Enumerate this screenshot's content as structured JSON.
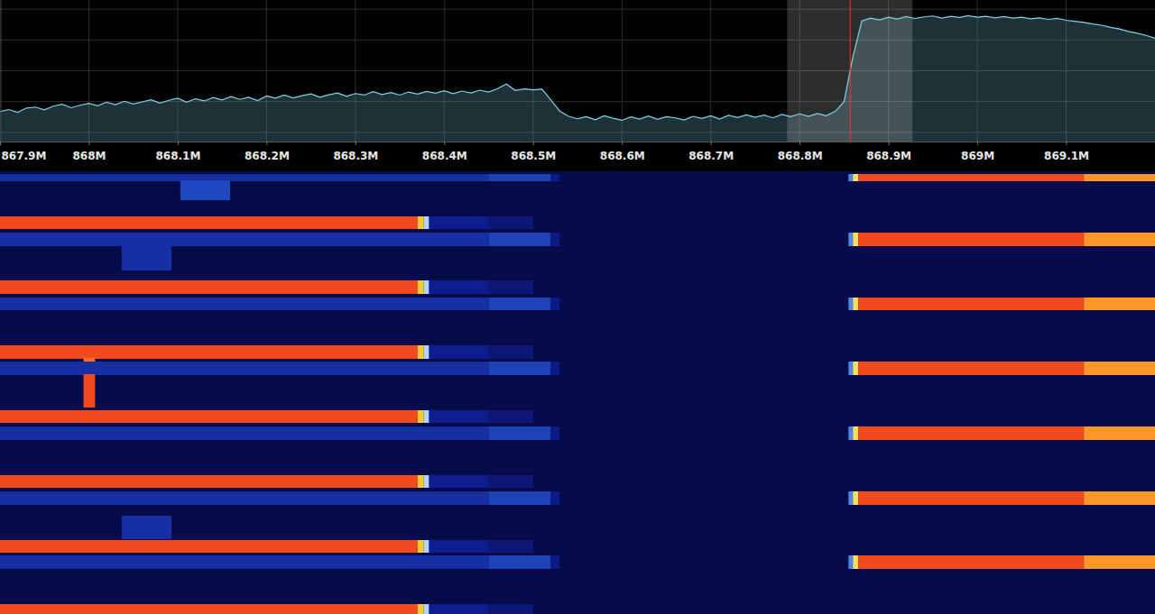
{
  "chart_data": {
    "type": "line",
    "color": "#7fd4e6",
    "grid": true,
    "tick_labels": "x",
    "xlim": [
      867.9,
      869.2
    ],
    "xticks": [
      {
        "value": 867.9,
        "label": "867.9M"
      },
      {
        "value": 868.0,
        "label": "868M"
      },
      {
        "value": 868.1,
        "label": "868.1M"
      },
      {
        "value": 868.2,
        "label": "868.2M"
      },
      {
        "value": 868.3,
        "label": "868.3M"
      },
      {
        "value": 868.4,
        "label": "868.4M"
      },
      {
        "value": 868.5,
        "label": "868.5M"
      },
      {
        "value": 868.6,
        "label": "868.6M"
      },
      {
        "value": 868.7,
        "label": "868.7M"
      },
      {
        "value": 868.8,
        "label": "868.8M"
      },
      {
        "value": 868.9,
        "label": "868.9M"
      },
      {
        "value": 869.0,
        "label": "869M"
      },
      {
        "value": 869.1,
        "label": "869.1M"
      }
    ],
    "ylim": [
      -103,
      -57
    ],
    "yticks": [
      -100,
      -90,
      -80,
      -70,
      -60
    ],
    "x": [
      867.9,
      867.91,
      867.92,
      867.93,
      867.94,
      867.95,
      867.96,
      867.97,
      867.98,
      867.99,
      868.0,
      868.01,
      868.02,
      868.03,
      868.04,
      868.05,
      868.06,
      868.07,
      868.08,
      868.09,
      868.1,
      868.11,
      868.12,
      868.13,
      868.14,
      868.15,
      868.16,
      868.17,
      868.18,
      868.19,
      868.2,
      868.21,
      868.22,
      868.23,
      868.24,
      868.25,
      868.26,
      868.27,
      868.28,
      868.29,
      868.3,
      868.31,
      868.32,
      868.33,
      868.34,
      868.35,
      868.36,
      868.37,
      868.38,
      868.39,
      868.4,
      868.41,
      868.42,
      868.43,
      868.44,
      868.45,
      868.46,
      868.47,
      868.48,
      868.49,
      868.5,
      868.51,
      868.52,
      868.53,
      868.54,
      868.55,
      868.56,
      868.57,
      868.58,
      868.59,
      868.6,
      868.61,
      868.62,
      868.63,
      868.64,
      868.65,
      868.66,
      868.67,
      868.68,
      868.69,
      868.7,
      868.71,
      868.72,
      868.73,
      868.74,
      868.75,
      868.76,
      868.77,
      868.78,
      868.79,
      868.8,
      868.81,
      868.82,
      868.83,
      868.84,
      868.85,
      868.86,
      868.87,
      868.88,
      868.89,
      868.9,
      868.91,
      868.92,
      868.93,
      868.94,
      868.95,
      868.96,
      868.97,
      868.98,
      868.99,
      869.0,
      869.01,
      869.02,
      869.03,
      869.04,
      869.05,
      869.06,
      869.07,
      869.08,
      869.09,
      869.1,
      869.11,
      869.12,
      869.13,
      869.14,
      869.15,
      869.16,
      869.17,
      869.18,
      869.19,
      869.2
    ],
    "values": [
      -93.2,
      -92.6,
      -93.5,
      -92.1,
      -91.8,
      -92.7,
      -91.5,
      -90.9,
      -92.0,
      -91.2,
      -90.6,
      -91.4,
      -90.2,
      -91.0,
      -89.9,
      -90.8,
      -90.1,
      -89.4,
      -90.5,
      -89.6,
      -88.9,
      -90.2,
      -89.1,
      -89.8,
      -88.7,
      -89.5,
      -88.4,
      -89.3,
      -88.6,
      -89.7,
      -88.2,
      -88.9,
      -87.9,
      -88.8,
      -88.1,
      -87.5,
      -88.6,
      -87.8,
      -87.2,
      -88.3,
      -87.4,
      -87.9,
      -86.8,
      -87.7,
      -87.1,
      -87.9,
      -86.9,
      -87.6,
      -86.7,
      -87.3,
      -86.5,
      -87.4,
      -86.6,
      -87.2,
      -86.3,
      -86.9,
      -85.8,
      -84.3,
      -86.4,
      -85.9,
      -86.2,
      -86.0,
      -89.5,
      -93.1,
      -94.8,
      -95.6,
      -94.9,
      -95.9,
      -94.6,
      -95.4,
      -96.1,
      -95.0,
      -95.7,
      -94.7,
      -95.8,
      -94.9,
      -95.3,
      -96.0,
      -94.8,
      -95.5,
      -94.6,
      -95.7,
      -94.5,
      -95.2,
      -94.3,
      -95.1,
      -94.4,
      -95.3,
      -94.2,
      -94.9,
      -94.0,
      -94.8,
      -93.9,
      -94.6,
      -93.2,
      -90.1,
      -75.4,
      -63.8,
      -62.9,
      -63.5,
      -62.6,
      -63.2,
      -62.4,
      -63.0,
      -62.5,
      -62.2,
      -62.9,
      -62.3,
      -62.7,
      -62.1,
      -62.6,
      -62.3,
      -62.8,
      -62.4,
      -62.9,
      -62.6,
      -63.1,
      -62.8,
      -63.3,
      -63.0,
      -63.6,
      -63.9,
      -64.3,
      -64.8,
      -65.2,
      -65.9,
      -66.4,
      -67.2,
      -67.8,
      -68.5,
      -69.4
    ],
    "selection": {
      "lo": 868.786,
      "hi": 868.927,
      "center": 868.857
    },
    "waterfall": {
      "tlim": [
        0,
        491
      ],
      "zlim": [
        -103,
        -57
      ],
      "bands": [
        {
          "t": [
            3,
            11
          ],
          "cells": [
            [
              867.9,
              868.45,
              -86
            ],
            [
              868.45,
              868.52,
              -83
            ],
            [
              868.52,
              868.53,
              -91
            ],
            [
              868.855,
              868.86,
              -76
            ],
            [
              868.86,
              868.866,
              -66
            ],
            [
              868.866,
              869.12,
              -58
            ],
            [
              869.12,
              869.2,
              -62
            ]
          ]
        },
        {
          "t": [
            10,
            32
          ],
          "cells": [
            [
              868.103,
              868.159,
              -82
            ]
          ]
        },
        {
          "t": [
            50,
            64
          ],
          "cells": [
            [
              867.9,
              868.37,
              -58
            ],
            [
              868.37,
              868.377,
              -64
            ],
            [
              868.377,
              868.383,
              -72
            ],
            [
              868.383,
              868.45,
              -89
            ],
            [
              868.45,
              868.5,
              -94
            ]
          ]
        },
        {
          "t": [
            68,
            83
          ],
          "cells": [
            [
              867.9,
              868.45,
              -86
            ],
            [
              868.45,
              868.52,
              -83
            ],
            [
              868.52,
              868.53,
              -91
            ],
            [
              868.855,
              868.86,
              -76
            ],
            [
              868.86,
              868.866,
              -66
            ],
            [
              868.866,
              869.12,
              -58
            ],
            [
              869.12,
              869.2,
              -62
            ]
          ]
        },
        {
          "t": [
            82,
            110
          ],
          "cells": [
            [
              868.037,
              868.093,
              -86
            ]
          ]
        },
        {
          "t": [
            121,
            136
          ],
          "cells": [
            [
              867.9,
              868.37,
              -58
            ],
            [
              868.37,
              868.377,
              -64
            ],
            [
              868.377,
              868.383,
              -72
            ],
            [
              868.383,
              868.45,
              -89
            ],
            [
              868.45,
              868.5,
              -94
            ]
          ]
        },
        {
          "t": [
            140,
            154
          ],
          "cells": [
            [
              867.9,
              868.45,
              -86
            ],
            [
              868.45,
              868.52,
              -83
            ],
            [
              868.52,
              868.53,
              -91
            ],
            [
              868.855,
              868.86,
              -76
            ],
            [
              868.86,
              868.866,
              -66
            ],
            [
              868.866,
              869.12,
              -58
            ],
            [
              869.12,
              869.2,
              -62
            ]
          ]
        },
        {
          "t": [
            193,
            208
          ],
          "cells": [
            [
              867.9,
              868.37,
              -58
            ],
            [
              868.37,
              868.377,
              -64
            ],
            [
              868.377,
              868.383,
              -72
            ],
            [
              868.383,
              868.45,
              -89
            ],
            [
              868.45,
              868.5,
              -94
            ]
          ]
        },
        {
          "t": [
            207,
            213
          ],
          "cells": [
            [
              867.994,
              868.007,
              -60
            ]
          ]
        },
        {
          "t": [
            211,
            226
          ],
          "cells": [
            [
              867.9,
              868.45,
              -86
            ],
            [
              868.45,
              868.52,
              -83
            ],
            [
              868.52,
              868.53,
              -91
            ],
            [
              868.855,
              868.86,
              -76
            ],
            [
              868.86,
              868.866,
              -66
            ],
            [
              868.866,
              869.12,
              -58
            ],
            [
              869.12,
              869.2,
              -62
            ]
          ]
        },
        {
          "t": [
            225,
            262
          ],
          "cells": [
            [
              867.994,
              868.007,
              -58
            ]
          ]
        },
        {
          "t": [
            265,
            279
          ],
          "cells": [
            [
              867.9,
              868.37,
              -58
            ],
            [
              868.37,
              868.377,
              -64
            ],
            [
              868.377,
              868.383,
              -72
            ],
            [
              868.383,
              868.45,
              -89
            ],
            [
              868.45,
              868.5,
              -94
            ]
          ]
        },
        {
          "t": [
            283,
            298
          ],
          "cells": [
            [
              867.9,
              868.45,
              -86
            ],
            [
              868.45,
              868.52,
              -83
            ],
            [
              868.52,
              868.53,
              -91
            ],
            [
              868.855,
              868.86,
              -76
            ],
            [
              868.86,
              868.866,
              -66
            ],
            [
              868.866,
              869.12,
              -58
            ],
            [
              869.12,
              869.2,
              -62
            ]
          ]
        },
        {
          "t": [
            337,
            351
          ],
          "cells": [
            [
              867.9,
              868.37,
              -58
            ],
            [
              868.37,
              868.377,
              -64
            ],
            [
              868.377,
              868.383,
              -72
            ],
            [
              868.383,
              868.45,
              -89
            ],
            [
              868.45,
              868.5,
              -94
            ]
          ]
        },
        {
          "t": [
            355,
            370
          ],
          "cells": [
            [
              867.9,
              868.45,
              -86
            ],
            [
              868.45,
              868.52,
              -83
            ],
            [
              868.52,
              868.53,
              -91
            ],
            [
              868.855,
              868.86,
              -76
            ],
            [
              868.86,
              868.866,
              -66
            ],
            [
              868.866,
              869.12,
              -58
            ],
            [
              869.12,
              869.2,
              -62
            ]
          ]
        },
        {
          "t": [
            382,
            408
          ],
          "cells": [
            [
              868.037,
              868.093,
              -86
            ]
          ]
        },
        {
          "t": [
            409,
            423
          ],
          "cells": [
            [
              867.9,
              868.37,
              -58
            ],
            [
              868.37,
              868.377,
              -64
            ],
            [
              868.377,
              868.383,
              -72
            ],
            [
              868.383,
              868.45,
              -89
            ],
            [
              868.45,
              868.5,
              -94
            ]
          ]
        },
        {
          "t": [
            426,
            441
          ],
          "cells": [
            [
              867.9,
              868.45,
              -86
            ],
            [
              868.45,
              868.52,
              -83
            ],
            [
              868.52,
              868.53,
              -91
            ],
            [
              868.855,
              868.86,
              -76
            ],
            [
              868.86,
              868.866,
              -66
            ],
            [
              868.866,
              869.12,
              -58
            ],
            [
              869.12,
              869.2,
              -62
            ]
          ]
        },
        {
          "t": [
            480,
            491
          ],
          "cells": [
            [
              867.9,
              868.37,
              -58
            ],
            [
              868.37,
              868.377,
              -64
            ],
            [
              868.377,
              868.383,
              -72
            ],
            [
              868.383,
              868.45,
              -89
            ],
            [
              868.45,
              868.5,
              -94
            ]
          ]
        }
      ]
    }
  }
}
